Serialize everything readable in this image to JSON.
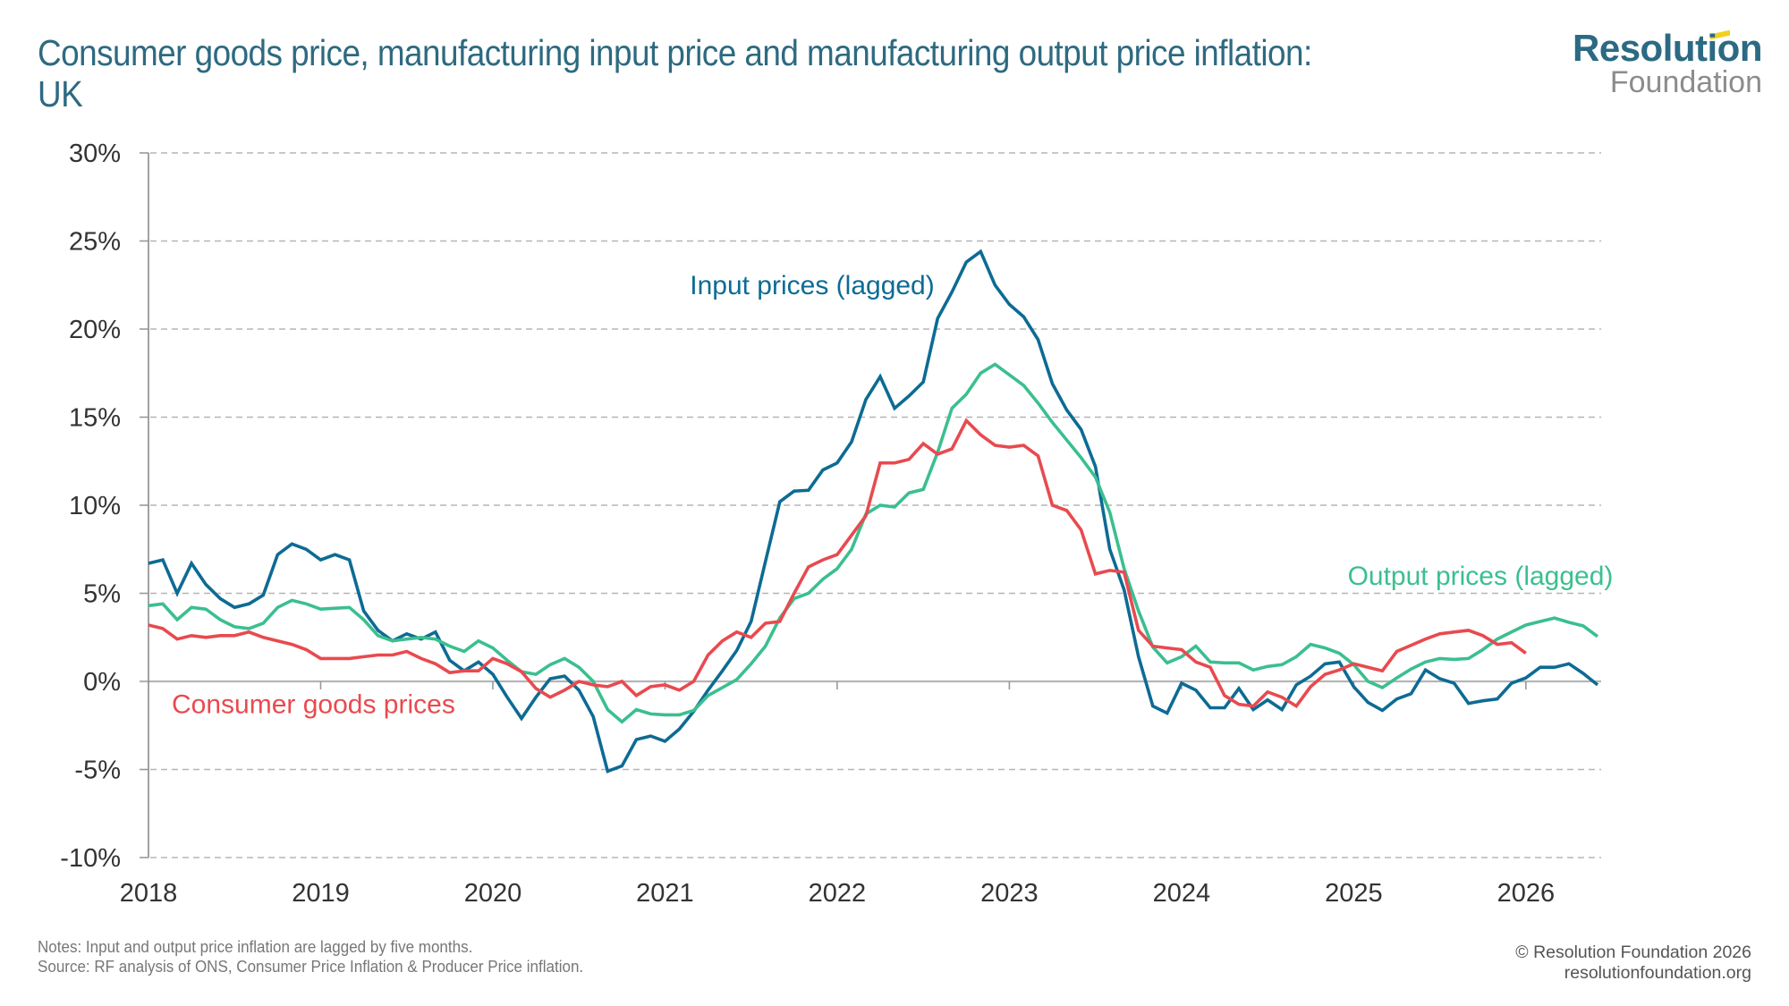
{
  "header": {
    "title": "Consumer goods price, manufacturing input price and manufacturing output price inflation: UK",
    "logo_top": "Resolution",
    "logo_bottom": "Foundation"
  },
  "footer": {
    "notes": "Notes: Input and output price inflation are lagged by five months.",
    "source": "Source: RF analysis of ONS, Consumer Price Inflation & Producer Price inflation.",
    "copyright": "© Resolution Foundation 2026",
    "website": "resolutionfoundation.org"
  },
  "colors": {
    "title": "#2d6a80",
    "input": "#0d6b94",
    "output": "#3bbf8f",
    "consumer": "#e84a4f",
    "grid": "#b5b5b5",
    "axis": "#b5b5b5"
  },
  "chart_data": {
    "type": "line",
    "title": "Consumer goods price, manufacturing input price and manufacturing output price inflation: UK",
    "xlabel": "",
    "ylabel": "",
    "x_start": "2018-01",
    "x_frequency": "monthly",
    "x_tick_labels": [
      "2018",
      "2019",
      "2020",
      "2021",
      "2022",
      "2023",
      "2024",
      "2025",
      "2026"
    ],
    "y_tick_labels": [
      "30%",
      "25%",
      "20%",
      "15%",
      "10%",
      "5%",
      "0%",
      "-5%",
      "-10%"
    ],
    "ylim": [
      -10,
      30
    ],
    "y_step": 5,
    "x_months_total": 102,
    "grid": true,
    "series": [
      {
        "name": "Input prices (lagged)",
        "color_key": "input",
        "label_anchor_month": 50,
        "label_anchor_value": 22.5,
        "values": [
          6.7,
          6.9,
          5.0,
          6.7,
          5.5,
          4.7,
          4.2,
          4.4,
          4.9,
          7.2,
          7.8,
          7.5,
          6.9,
          7.2,
          6.9,
          4.0,
          2.9,
          2.3,
          2.7,
          2.4,
          2.8,
          1.2,
          0.6,
          1.1,
          0.4,
          -0.9,
          -2.1,
          -0.9,
          0.15,
          0.3,
          -0.5,
          -2.0,
          -5.1,
          -4.8,
          -3.3,
          -3.1,
          -3.4,
          -2.7,
          -1.7,
          -0.5,
          0.6,
          1.75,
          3.4,
          6.8,
          10.2,
          10.8,
          10.85,
          12.0,
          12.4,
          13.6,
          16.0,
          17.3,
          15.5,
          16.2,
          17.0,
          20.6,
          22.1,
          23.8,
          24.4,
          22.5,
          21.4,
          20.7,
          19.4,
          16.9,
          15.4,
          14.3,
          12.2,
          7.5,
          5.2,
          1.4,
          -1.4,
          -1.8,
          -0.1,
          -0.5,
          -1.5,
          -1.5,
          -0.4,
          -1.6,
          -1.05,
          -1.6,
          -0.2,
          0.3,
          1.0,
          1.1,
          -0.3,
          -1.2,
          -1.65,
          -1.0,
          -0.7,
          0.65,
          0.15,
          -0.1,
          -1.25,
          -1.1,
          -1.0,
          -0.1,
          0.2,
          0.8,
          0.8,
          1.0,
          0.45,
          -0.2
        ]
      },
      {
        "name": "Output prices (lagged)",
        "color_key": "output",
        "label_anchor_month": 97,
        "label_anchor_value": 6.0,
        "values": [
          4.3,
          4.4,
          3.5,
          4.2,
          4.1,
          3.5,
          3.1,
          3.0,
          3.3,
          4.2,
          4.6,
          4.4,
          4.1,
          4.15,
          4.2,
          3.5,
          2.6,
          2.3,
          2.4,
          2.5,
          2.4,
          2.0,
          1.7,
          2.3,
          1.9,
          1.2,
          0.55,
          0.4,
          0.95,
          1.3,
          0.8,
          0.0,
          -1.6,
          -2.3,
          -1.6,
          -1.85,
          -1.9,
          -1.9,
          -1.65,
          -0.8,
          -0.35,
          0.1,
          1.0,
          2.0,
          3.6,
          4.7,
          5.0,
          5.8,
          6.4,
          7.5,
          9.5,
          10.0,
          9.9,
          10.7,
          10.9,
          13.0,
          15.5,
          16.3,
          17.5,
          18.0,
          17.4,
          16.8,
          15.8,
          14.7,
          13.7,
          12.7,
          11.6,
          9.6,
          6.4,
          4.0,
          1.95,
          1.05,
          1.4,
          2.0,
          1.1,
          1.05,
          1.05,
          0.65,
          0.85,
          0.95,
          1.4,
          2.1,
          1.9,
          1.6,
          0.95,
          0.0,
          -0.35,
          0.2,
          0.7,
          1.1,
          1.3,
          1.25,
          1.3,
          1.8,
          2.4,
          2.8,
          3.2,
          3.4,
          3.6,
          3.35,
          3.15,
          2.55
        ]
      },
      {
        "name": "Consumer goods prices",
        "color_key": "consumer",
        "label_anchor_month": 11,
        "label_anchor_value": -1.3,
        "values": [
          3.2,
          3.0,
          2.4,
          2.6,
          2.5,
          2.6,
          2.6,
          2.8,
          2.5,
          2.3,
          2.1,
          1.8,
          1.3,
          1.3,
          1.3,
          1.4,
          1.5,
          1.5,
          1.7,
          1.3,
          1.0,
          0.5,
          0.6,
          0.6,
          1.3,
          1.0,
          0.55,
          -0.4,
          -0.9,
          -0.5,
          0.0,
          -0.2,
          -0.3,
          0.0,
          -0.8,
          -0.3,
          -0.2,
          -0.5,
          0.0,
          1.5,
          2.3,
          2.8,
          2.5,
          3.3,
          3.4,
          5.0,
          6.5,
          6.9,
          7.2,
          8.3,
          9.4,
          12.4,
          12.4,
          12.6,
          13.5,
          12.9,
          13.2,
          14.8,
          14.0,
          13.4,
          13.3,
          13.4,
          12.8,
          10.0,
          9.7,
          8.6,
          6.1,
          6.3,
          6.2,
          2.9,
          2.0,
          1.9,
          1.8,
          1.1,
          0.8,
          -0.8,
          -1.3,
          -1.4,
          -0.6,
          -0.9,
          -1.4,
          -0.3,
          0.4,
          0.65,
          1.0,
          0.8,
          0.6,
          1.7,
          2.05,
          2.4,
          2.7,
          2.8,
          2.9,
          2.6,
          2.1,
          2.2,
          1.6
        ]
      }
    ]
  }
}
